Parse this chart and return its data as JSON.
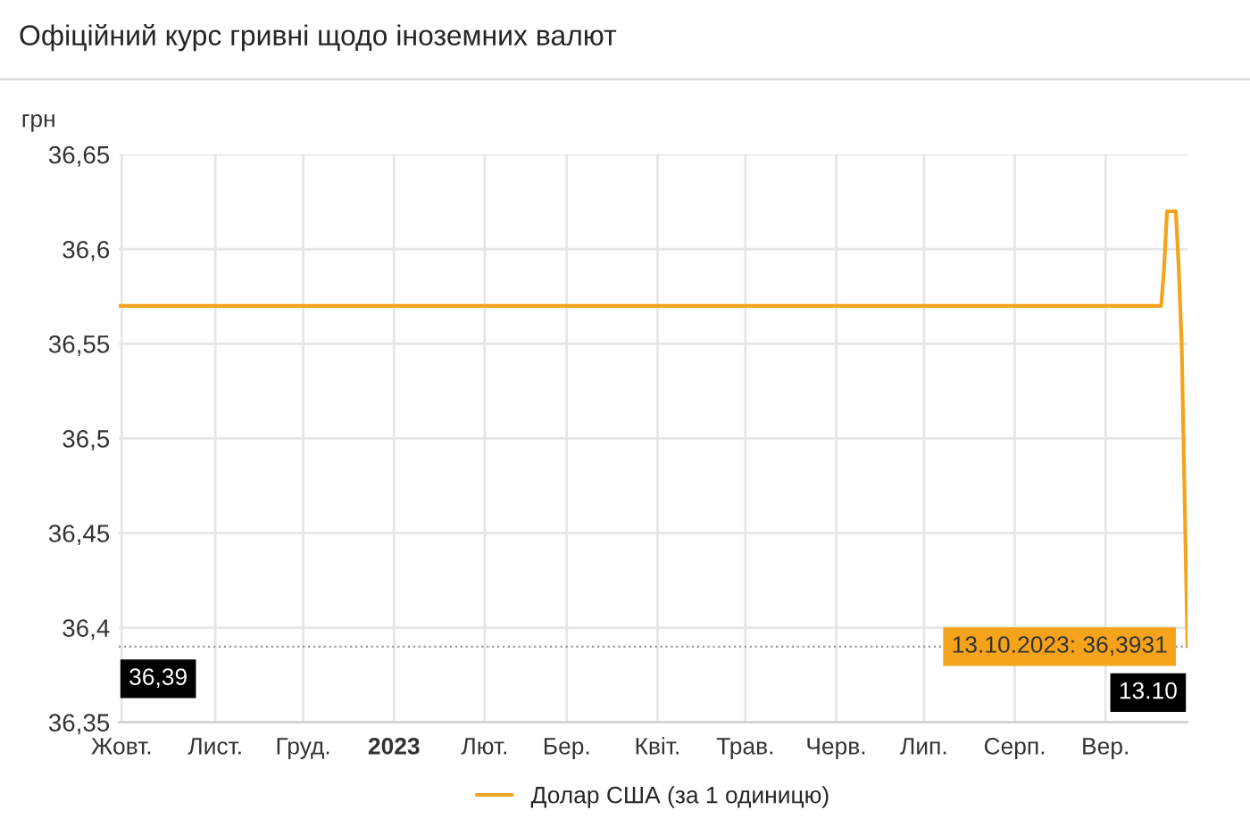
{
  "chart_data": {
    "type": "line",
    "title": "Офіційний курс гривні щодо іноземних валют",
    "ylabel": "грн",
    "categories": [
      null,
      "Жовт.",
      null,
      null,
      null,
      null,
      null,
      null,
      null,
      null,
      null,
      null,
      null,
      null,
      null,
      null,
      null,
      null,
      null,
      null,
      null,
      null,
      null,
      null,
      null,
      null,
      null,
      null,
      null,
      null,
      null,
      null,
      null,
      "Лист.",
      null,
      null,
      null,
      null,
      null,
      null,
      null,
      null,
      null,
      null,
      null,
      null,
      null,
      null,
      null,
      null,
      null,
      null,
      null,
      null,
      null,
      null,
      null,
      null,
      null,
      null,
      null,
      null,
      null,
      "Груд.",
      null,
      null,
      null,
      null,
      null,
      null,
      null,
      null,
      null,
      null,
      null,
      null,
      null,
      null,
      null,
      null,
      null,
      null,
      null,
      null,
      null,
      null,
      null,
      null,
      null,
      null,
      null,
      null,
      null,
      null,
      "2023",
      null,
      null,
      null,
      null,
      null,
      null,
      null,
      null,
      null,
      null,
      null,
      null,
      null,
      null,
      null,
      null,
      null,
      null,
      null,
      null,
      null,
      null,
      null,
      null,
      null,
      null,
      null,
      null,
      null,
      null,
      "Лют.",
      null,
      null,
      null,
      null,
      null,
      null,
      null,
      null,
      null,
      null,
      null,
      null,
      null,
      null,
      null,
      null,
      null,
      null,
      null,
      null,
      null,
      null,
      null,
      null,
      null,
      null,
      null,
      "Бер.",
      null,
      null,
      null,
      null,
      null,
      null,
      null,
      null,
      null,
      null,
      null,
      null,
      null,
      null,
      null,
      null,
      null,
      null,
      null,
      null,
      null,
      null,
      null,
      null,
      null,
      null,
      null,
      null,
      null,
      null,
      "Квіт.",
      null,
      null,
      null,
      null,
      null,
      null,
      null,
      null,
      null,
      null,
      null,
      null,
      null,
      null,
      null,
      null,
      null,
      null,
      null,
      null,
      null,
      null,
      null,
      null,
      null,
      null,
      null,
      null,
      null,
      "Трав.",
      null,
      null,
      null,
      null,
      null,
      null,
      null,
      null,
      null,
      null,
      null,
      null,
      null,
      null,
      null,
      null,
      null,
      null,
      null,
      null,
      null,
      null,
      null,
      null,
      null,
      null,
      null,
      null,
      null,
      null,
      "Черв.",
      null,
      null,
      null,
      null,
      null,
      null,
      null,
      null,
      null,
      null,
      null,
      null,
      null,
      null,
      null,
      null,
      null,
      null,
      null,
      null,
      null,
      null,
      null,
      null,
      null,
      null,
      null,
      null,
      null,
      "Лип.",
      null,
      null,
      null,
      null,
      null,
      null,
      null,
      null,
      null,
      null,
      null,
      null,
      null,
      null,
      null,
      null,
      null,
      null,
      null,
      null,
      null,
      null,
      null,
      null,
      null,
      null,
      null,
      null,
      null,
      null,
      "Серп.",
      null,
      null,
      null,
      null,
      null,
      null,
      null,
      null,
      null,
      null,
      null,
      null,
      null,
      null,
      null,
      null,
      null,
      null,
      null,
      null,
      null,
      null,
      null,
      null,
      null,
      null,
      null,
      null,
      null,
      null,
      "Вер.",
      null,
      null,
      null,
      null,
      null,
      null,
      null,
      null,
      null,
      null,
      null,
      null,
      null,
      null,
      null,
      null,
      null,
      null,
      null,
      null,
      null,
      null,
      null,
      null,
      null,
      null,
      null,
      null
    ],
    "series": [
      {
        "name": "Долар США (за 1 одиницю)",
        "color": "#f5a31a",
        "values": [
          36.57,
          36.57,
          36.57,
          36.57,
          36.57,
          36.57,
          36.57,
          36.57,
          36.57,
          36.57,
          36.57,
          36.57,
          36.57,
          36.57,
          36.57,
          36.57,
          36.57,
          36.57,
          36.57,
          36.57,
          36.57,
          36.57,
          36.57,
          36.57,
          36.57,
          36.57,
          36.57,
          36.57,
          36.57,
          36.57,
          36.57,
          36.57,
          36.57,
          36.57,
          36.57,
          36.57,
          36.57,
          36.57,
          36.57,
          36.57,
          36.57,
          36.57,
          36.57,
          36.57,
          36.57,
          36.57,
          36.57,
          36.57,
          36.57,
          36.57,
          36.57,
          36.57,
          36.57,
          36.57,
          36.57,
          36.57,
          36.57,
          36.57,
          36.57,
          36.57,
          36.57,
          36.57,
          36.57,
          36.57,
          36.57,
          36.57,
          36.57,
          36.57,
          36.57,
          36.57,
          36.57,
          36.57,
          36.57,
          36.57,
          36.57,
          36.57,
          36.57,
          36.57,
          36.57,
          36.57,
          36.57,
          36.57,
          36.57,
          36.57,
          36.57,
          36.57,
          36.57,
          36.57,
          36.57,
          36.57,
          36.57,
          36.57,
          36.57,
          36.57,
          36.57,
          36.57,
          36.57,
          36.57,
          36.57,
          36.57,
          36.57,
          36.57,
          36.57,
          36.57,
          36.57,
          36.57,
          36.57,
          36.57,
          36.57,
          36.57,
          36.57,
          36.57,
          36.57,
          36.57,
          36.57,
          36.57,
          36.57,
          36.57,
          36.57,
          36.57,
          36.57,
          36.57,
          36.57,
          36.57,
          36.57,
          36.57,
          36.57,
          36.57,
          36.57,
          36.57,
          36.57,
          36.57,
          36.57,
          36.57,
          36.57,
          36.57,
          36.57,
          36.57,
          36.57,
          36.57,
          36.57,
          36.57,
          36.57,
          36.57,
          36.57,
          36.57,
          36.57,
          36.57,
          36.57,
          36.57,
          36.57,
          36.57,
          36.57,
          36.57,
          36.57,
          36.57,
          36.57,
          36.57,
          36.57,
          36.57,
          36.57,
          36.57,
          36.57,
          36.57,
          36.57,
          36.57,
          36.57,
          36.57,
          36.57,
          36.57,
          36.57,
          36.57,
          36.57,
          36.57,
          36.57,
          36.57,
          36.57,
          36.57,
          36.57,
          36.57,
          36.57,
          36.57,
          36.57,
          36.57,
          36.57,
          36.57,
          36.57,
          36.57,
          36.57,
          36.57,
          36.57,
          36.57,
          36.57,
          36.57,
          36.57,
          36.57,
          36.57,
          36.57,
          36.57,
          36.57,
          36.57,
          36.57,
          36.57,
          36.57,
          36.57,
          36.57,
          36.57,
          36.57,
          36.57,
          36.57,
          36.57,
          36.57,
          36.57,
          36.57,
          36.57,
          36.57,
          36.57,
          36.57,
          36.57,
          36.57,
          36.57,
          36.57,
          36.57,
          36.57,
          36.57,
          36.57,
          36.57,
          36.57,
          36.57,
          36.57,
          36.57,
          36.57,
          36.57,
          36.57,
          36.57,
          36.57,
          36.57,
          36.57,
          36.57,
          36.57,
          36.57,
          36.57,
          36.57,
          36.57,
          36.57,
          36.57,
          36.57,
          36.57,
          36.57,
          36.57,
          36.57,
          36.57,
          36.57,
          36.57,
          36.57,
          36.57,
          36.57,
          36.57,
          36.57,
          36.57,
          36.57,
          36.57,
          36.57,
          36.57,
          36.57,
          36.57,
          36.57,
          36.57,
          36.57,
          36.57,
          36.57,
          36.57,
          36.57,
          36.57,
          36.57,
          36.57,
          36.57,
          36.57,
          36.57,
          36.57,
          36.57,
          36.57,
          36.57,
          36.57,
          36.57,
          36.57,
          36.57,
          36.57,
          36.57,
          36.57,
          36.57,
          36.57,
          36.57,
          36.57,
          36.57,
          36.57,
          36.57,
          36.57,
          36.57,
          36.57,
          36.57,
          36.57,
          36.57,
          36.57,
          36.57,
          36.57,
          36.57,
          36.57,
          36.57,
          36.57,
          36.57,
          36.57,
          36.57,
          36.57,
          36.57,
          36.57,
          36.57,
          36.57,
          36.57,
          36.57,
          36.57,
          36.57,
          36.57,
          36.57,
          36.57,
          36.57,
          36.57,
          36.57,
          36.57,
          36.57,
          36.57,
          36.57,
          36.57,
          36.57,
          36.57,
          36.57,
          36.57,
          36.57,
          36.57,
          36.57,
          36.57,
          36.57,
          36.57,
          36.57,
          36.57,
          36.57,
          36.57,
          36.57,
          36.57,
          36.57,
          36.57,
          36.57,
          36.57,
          36.57,
          36.57,
          36.57,
          36.57,
          36.59,
          36.62,
          36.62,
          36.62,
          36.62,
          36.59,
          36.55,
          36.47,
          36.39
        ]
      }
    ],
    "ylim": [
      36.35,
      36.65
    ],
    "yticks": [
      {
        "value": 36.35,
        "label": "36,35"
      },
      {
        "value": 36.4,
        "label": "36,4"
      },
      {
        "value": 36.45,
        "label": "36,45"
      },
      {
        "value": 36.5,
        "label": "36,5"
      },
      {
        "value": 36.55,
        "label": "36,55"
      },
      {
        "value": 36.6,
        "label": "36,6"
      },
      {
        "value": 36.65,
        "label": "36,65"
      }
    ],
    "grid": true,
    "legend": "bottom",
    "marker": "none",
    "line_style": "solid",
    "ref_lines": [
      {
        "axis": "y",
        "value": 36.39,
        "label": "36,39",
        "color": "#999999",
        "line_style": "dotted"
      }
    ],
    "annotations": [
      "13.10.2023: 36,3931",
      "13.10"
    ]
  }
}
